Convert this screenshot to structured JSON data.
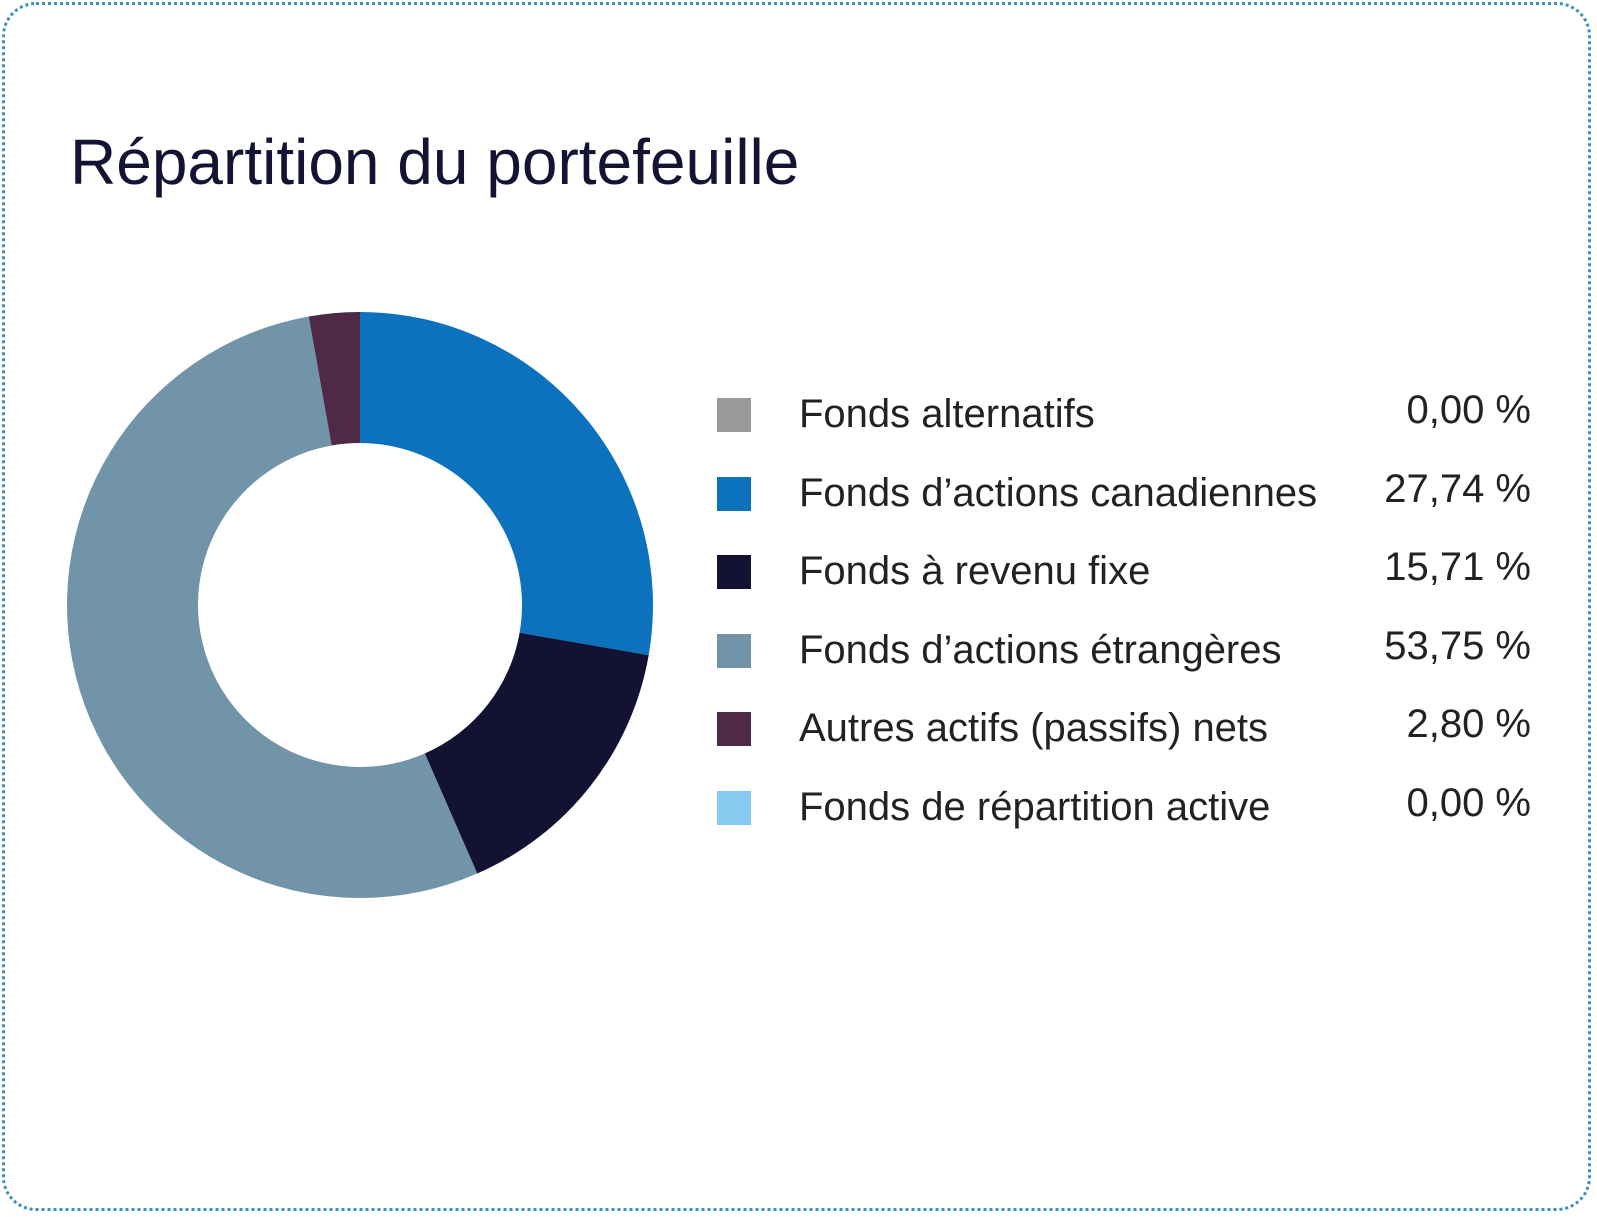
{
  "chart_data": {
    "type": "pie",
    "title": "Répartition du portefeuille",
    "slices": [
      {
        "label": "Fonds alternatifs",
        "value": 0.0,
        "display": "0,00 %",
        "color": "#999999"
      },
      {
        "label": "Fonds d’actions canadiennes",
        "value": 27.74,
        "display": "27,74 %",
        "color": "#0d72be"
      },
      {
        "label": "Fonds à revenu fixe",
        "value": 15.71,
        "display": "15,71 %",
        "color": "#131233"
      },
      {
        "label": "Fonds d’actions étrangères",
        "value": 53.75,
        "display": "53,75 %",
        "color": "#7194a9"
      },
      {
        "label": "Autres actifs (passifs) nets",
        "value": 2.8,
        "display": "2,80 %",
        "color": "#4e2a47"
      },
      {
        "label": "Fonds de répartition active",
        "value": 0.0,
        "display": "0,00 %",
        "color": "#89cbf0"
      }
    ],
    "donut": true,
    "legend_position": "right"
  }
}
